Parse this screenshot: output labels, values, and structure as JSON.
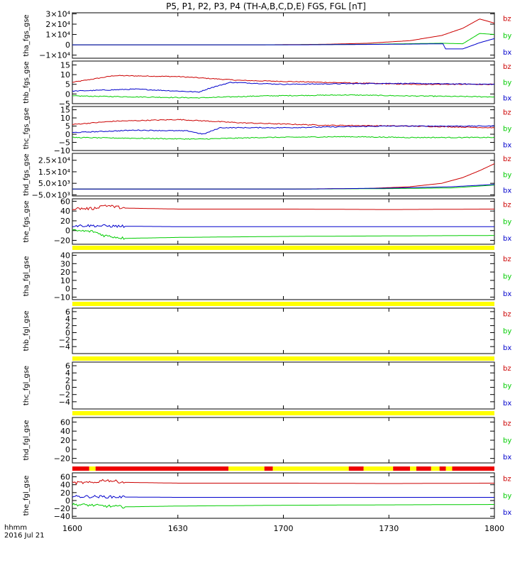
{
  "title": "P5, P1, P2, P3, P4 (TH-A,B,C,D,E) FGS, FGL [nT]",
  "colors": {
    "bx": "#0000cc",
    "by": "#00cc00",
    "bz": "#cc0000",
    "bar_yellow": "#ffff00",
    "bar_red": "#ee0000",
    "axis": "#000000"
  },
  "time_axis": {
    "ticks": [
      "1600",
      "1630",
      "1700",
      "1730",
      "1800"
    ],
    "tick_hours": [
      0,
      0.5,
      1.0,
      1.5,
      2.0
    ],
    "label_line1": "hhmm",
    "label_line2": "2016 Jul 21"
  },
  "chart_data": [
    {
      "type": "line",
      "ylabel": "tha_fgs_gse",
      "ylim": [
        -13000,
        31000
      ],
      "yticks": [
        {
          "v": 30000,
          "t": "3×10⁴"
        },
        {
          "v": 20000,
          "t": "2×10⁴"
        },
        {
          "v": 10000,
          "t": "1×10⁴"
        },
        {
          "v": 0,
          "t": "0"
        },
        {
          "v": -10000,
          "t": "−1×10⁴"
        }
      ],
      "legend": [
        "bz",
        "by",
        "bx"
      ],
      "series": [
        {
          "name": "bz",
          "x": [
            0,
            0.9,
            1.2,
            1.4,
            1.6,
            1.75,
            1.85,
            1.93,
            2.0
          ],
          "values": [
            0,
            0,
            500,
            1500,
            4000,
            9000,
            16000,
            25000,
            21000
          ]
        },
        {
          "name": "by",
          "x": [
            0,
            1.0,
            1.4,
            1.75,
            1.85,
            1.93,
            2.0
          ],
          "values": [
            0,
            0,
            500,
            1500,
            1000,
            11000,
            10000
          ]
        },
        {
          "name": "bx",
          "x": [
            0,
            1.1,
            1.5,
            1.76,
            1.765,
            1.85,
            1.93,
            2.0
          ],
          "values": [
            0,
            0,
            500,
            1000,
            -4000,
            -4000,
            2000,
            6000
          ]
        }
      ]
    },
    {
      "type": "line",
      "ylabel": "thb_fgs_gse",
      "ylim": [
        -5,
        17
      ],
      "yticks": [
        {
          "v": 15,
          "t": "15"
        },
        {
          "v": 10,
          "t": "10"
        },
        {
          "v": 5,
          "t": "5"
        },
        {
          "v": 0,
          "t": "0"
        },
        {
          "v": -5,
          "t": "−5"
        }
      ],
      "legend": [
        "bz",
        "by",
        "bx"
      ],
      "series": [
        {
          "name": "bz",
          "x": [
            0,
            0.2,
            0.5,
            0.8,
            1.2,
            1.6,
            2.0
          ],
          "values": [
            6,
            9.5,
            9,
            7,
            6,
            5,
            5
          ]
        },
        {
          "name": "by",
          "x": [
            0,
            0.3,
            0.6,
            0.9,
            1.3,
            1.6,
            2.0
          ],
          "values": [
            -1,
            -1.5,
            -2,
            -1,
            -0.5,
            -1,
            -1.5
          ]
        },
        {
          "name": "bx",
          "x": [
            0,
            0.3,
            0.6,
            0.65,
            0.75,
            1.0,
            1.5,
            2.0
          ],
          "values": [
            1.5,
            2.5,
            1,
            3,
            6,
            5,
            5.5,
            5
          ]
        }
      ]
    },
    {
      "type": "line",
      "ylabel": "thc_fgs_gse",
      "ylim": [
        -10,
        17
      ],
      "yticks": [
        {
          "v": 15,
          "t": "15"
        },
        {
          "v": 10,
          "t": "10"
        },
        {
          "v": 5,
          "t": "5"
        },
        {
          "v": 0,
          "t": "0"
        },
        {
          "v": -5,
          "t": "−5"
        },
        {
          "v": -10,
          "t": "−10"
        }
      ],
      "legend": [
        "bz",
        "by",
        "bx"
      ],
      "series": [
        {
          "name": "bz",
          "x": [
            0,
            0.2,
            0.5,
            0.8,
            1.2,
            1.6,
            2.0
          ],
          "values": [
            6,
            8,
            9,
            7,
            5.5,
            5,
            4
          ]
        },
        {
          "name": "by",
          "x": [
            0,
            0.3,
            0.6,
            0.9,
            1.3,
            1.6,
            2.0
          ],
          "values": [
            -2,
            -2.5,
            -3,
            -2,
            -1.5,
            -2,
            -2
          ]
        },
        {
          "name": "bx",
          "x": [
            0,
            0.3,
            0.55,
            0.62,
            0.7,
            1.0,
            1.5,
            2.0
          ],
          "values": [
            1,
            2.5,
            2,
            0,
            4,
            4,
            5,
            5
          ]
        }
      ]
    },
    {
      "type": "line",
      "ylabel": "thd_fgs_gse",
      "ylim": [
        -6000,
        31000
      ],
      "yticks": [
        {
          "v": 25000,
          "t": "2.5×10⁴"
        },
        {
          "v": 15000,
          "t": "1.5×10⁴"
        },
        {
          "v": 5000,
          "t": "5.0×10³"
        },
        {
          "v": -5000,
          "t": "−5.0×10³"
        }
      ],
      "legend": [
        "bz",
        "by",
        "bx"
      ],
      "series": [
        {
          "name": "bz",
          "x": [
            0,
            1.0,
            1.4,
            1.6,
            1.75,
            1.85,
            1.93,
            2.0
          ],
          "values": [
            0,
            0,
            500,
            2000,
            5000,
            10000,
            16000,
            22000
          ]
        },
        {
          "name": "by",
          "x": [
            0,
            1.1,
            1.5,
            1.8,
            2.0
          ],
          "values": [
            0,
            0,
            400,
            1000,
            3500
          ]
        },
        {
          "name": "bx",
          "x": [
            0,
            1.1,
            1.5,
            1.8,
            2.0
          ],
          "values": [
            0,
            0,
            800,
            2000,
            4000
          ]
        }
      ]
    },
    {
      "type": "line",
      "ylabel": "the_fgs_gse",
      "ylim": [
        -28,
        65
      ],
      "yticks": [
        {
          "v": 60,
          "t": "60"
        },
        {
          "v": 40,
          "t": "40"
        },
        {
          "v": 20,
          "t": "20"
        },
        {
          "v": 0,
          "t": "0"
        },
        {
          "v": -20,
          "t": "−20"
        }
      ],
      "legend": [
        "bz",
        "by",
        "bx"
      ],
      "series": [
        {
          "name": "bz",
          "x": [
            0,
            0.1,
            0.15,
            0.25,
            0.5,
            1.0,
            1.5,
            2.0
          ],
          "values": [
            45,
            45,
            52,
            46,
            44,
            44,
            43,
            44
          ]
        },
        {
          "name": "by",
          "x": [
            0,
            0.1,
            0.15,
            0.25,
            0.5,
            1.0,
            1.5,
            2.0
          ],
          "values": [
            0,
            -2,
            -10,
            -16,
            -14,
            -12,
            -11,
            -10
          ]
        },
        {
          "name": "bx",
          "x": [
            0,
            0.1,
            0.2,
            0.5,
            1.0,
            1.5,
            2.0
          ],
          "values": [
            10,
            10,
            9,
            8,
            8,
            8,
            8
          ]
        }
      ]
    },
    {
      "type": "line",
      "ylabel": "tha_fgl_gse",
      "ylim": [
        -13,
        43
      ],
      "yticks": [
        {
          "v": 40,
          "t": "40"
        },
        {
          "v": 30,
          "t": "30"
        },
        {
          "v": 20,
          "t": "20"
        },
        {
          "v": 10,
          "t": "10"
        },
        {
          "v": 0,
          "t": "0"
        },
        {
          "v": -10,
          "t": "−10"
        }
      ],
      "legend": [
        "bz",
        "by",
        "bx"
      ],
      "series": []
    },
    {
      "type": "line",
      "ylabel": "thb_fgl_gse",
      "ylim": [
        -6,
        7
      ],
      "yticks": [
        {
          "v": 6,
          "t": "6"
        },
        {
          "v": 4,
          "t": "4"
        },
        {
          "v": 2,
          "t": "2"
        },
        {
          "v": 0,
          "t": "0"
        },
        {
          "v": -2,
          "t": "−2"
        },
        {
          "v": -4,
          "t": "−4"
        }
      ],
      "legend": [
        "bz",
        "by",
        "bx"
      ],
      "series": []
    },
    {
      "type": "line",
      "ylabel": "thc_fgl_gse",
      "ylim": [
        -6,
        7
      ],
      "yticks": [
        {
          "v": 6,
          "t": "6"
        },
        {
          "v": 4,
          "t": "4"
        },
        {
          "v": 2,
          "t": "2"
        },
        {
          "v": 0,
          "t": "0"
        },
        {
          "v": -2,
          "t": "−2"
        },
        {
          "v": -4,
          "t": "−4"
        }
      ],
      "legend": [
        "bz",
        "by",
        "bx"
      ],
      "series": []
    },
    {
      "type": "line",
      "ylabel": "thd_fgl_gse",
      "ylim": [
        -30,
        70
      ],
      "yticks": [
        {
          "v": 60,
          "t": "60"
        },
        {
          "v": 40,
          "t": "40"
        },
        {
          "v": 20,
          "t": "20"
        },
        {
          "v": 0,
          "t": "0"
        },
        {
          "v": -20,
          "t": "−20"
        }
      ],
      "legend": [
        "bz",
        "by",
        "bx"
      ],
      "series": []
    },
    {
      "type": "line",
      "ylabel": "the_fgl_gse",
      "ylim": [
        -45,
        70
      ],
      "yticks": [
        {
          "v": 60,
          "t": "60"
        },
        {
          "v": 40,
          "t": "40"
        },
        {
          "v": 20,
          "t": "20"
        },
        {
          "v": 0,
          "t": "0"
        },
        {
          "v": -20,
          "t": "−20"
        },
        {
          "v": -40,
          "t": "−40"
        }
      ],
      "legend": [
        "bz",
        "by",
        "bx"
      ],
      "series": [
        {
          "name": "bz",
          "x": [
            0,
            0.1,
            0.15,
            0.25,
            0.5,
            1.0,
            1.5,
            2.0
          ],
          "values": [
            45,
            45,
            52,
            46,
            44,
            44,
            43,
            44
          ]
        },
        {
          "name": "by",
          "x": [
            0,
            0.1,
            0.15,
            0.25,
            0.5,
            1.0,
            1.5,
            2.0
          ],
          "values": [
            -10,
            -12,
            -14,
            -16,
            -14,
            -12,
            -11,
            -10
          ]
        },
        {
          "name": "bx",
          "x": [
            0,
            0.1,
            0.2,
            0.5,
            1.0,
            1.5,
            2.0
          ],
          "values": [
            10,
            10,
            9,
            8,
            8,
            8,
            8
          ]
        }
      ]
    }
  ],
  "mode_bars": [
    {
      "after_panel": 4,
      "segments": [
        {
          "start": 0,
          "end": 2.0,
          "color": "yellow"
        }
      ]
    },
    {
      "after_panel": 5,
      "segments": [
        {
          "start": 0,
          "end": 2.0,
          "color": "yellow"
        }
      ]
    },
    {
      "after_panel": 6,
      "segments": [
        {
          "start": 0,
          "end": 2.0,
          "color": "yellow"
        }
      ]
    },
    {
      "after_panel": 7,
      "segments": [
        {
          "start": 0,
          "end": 2.0,
          "color": "yellow"
        }
      ]
    },
    {
      "after_panel": 8,
      "segments": [
        {
          "start": 0,
          "end": 0.08,
          "color": "red"
        },
        {
          "start": 0.08,
          "end": 0.11,
          "color": "yellow"
        },
        {
          "start": 0.11,
          "end": 0.74,
          "color": "red"
        },
        {
          "start": 0.74,
          "end": 0.91,
          "color": "yellow"
        },
        {
          "start": 0.91,
          "end": 0.95,
          "color": "red"
        },
        {
          "start": 0.95,
          "end": 1.31,
          "color": "yellow"
        },
        {
          "start": 1.31,
          "end": 1.38,
          "color": "red"
        },
        {
          "start": 1.38,
          "end": 1.52,
          "color": "yellow"
        },
        {
          "start": 1.52,
          "end": 1.6,
          "color": "red"
        },
        {
          "start": 1.6,
          "end": 1.63,
          "color": "yellow"
        },
        {
          "start": 1.63,
          "end": 1.7,
          "color": "red"
        },
        {
          "start": 1.7,
          "end": 1.74,
          "color": "yellow"
        },
        {
          "start": 1.74,
          "end": 1.77,
          "color": "red"
        },
        {
          "start": 1.77,
          "end": 1.8,
          "color": "yellow"
        },
        {
          "start": 1.8,
          "end": 2.0,
          "color": "red"
        }
      ]
    }
  ]
}
